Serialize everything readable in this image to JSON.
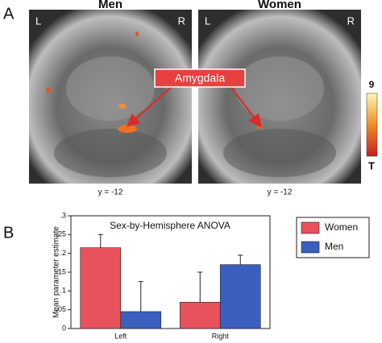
{
  "panel_a": {
    "label": "A",
    "images": [
      {
        "title": "Men",
        "left": "L",
        "right": "R",
        "caption": "y = -12"
      },
      {
        "title": "Women",
        "left": "L",
        "right": "R",
        "caption": "y = -12"
      }
    ],
    "annotation": "Amygdala",
    "colorbar_max": "9",
    "colorbar_label": "T"
  },
  "panel_b": {
    "label": "B"
  },
  "chart_data": {
    "type": "bar",
    "title": "Sex-by-Hemisphere ANOVA",
    "y_label": "Mean parameter estimate",
    "categories": [
      "Left",
      "Right"
    ],
    "series": [
      {
        "name": "Women",
        "color": "#e8525c",
        "values": [
          0.215,
          0.07
        ],
        "errors": [
          0.035,
          0.08
        ]
      },
      {
        "name": "Men",
        "color": "#3a5fbf",
        "values": [
          0.045,
          0.17
        ],
        "errors": [
          0.08,
          0.025
        ]
      }
    ],
    "ylim": [
      0,
      0.3
    ],
    "yticks": [
      0,
      {
        "value": 0.05,
        "label": ".05"
      },
      {
        "value": 0.1,
        "label": ".1"
      },
      {
        "value": 0.15,
        "label": ".15"
      },
      {
        "value": 0.2,
        "label": ".2"
      },
      {
        "value": 0.25,
        "label": ".25"
      },
      {
        "value": 0.3,
        "label": ".3"
      }
    ],
    "legend": "right"
  }
}
